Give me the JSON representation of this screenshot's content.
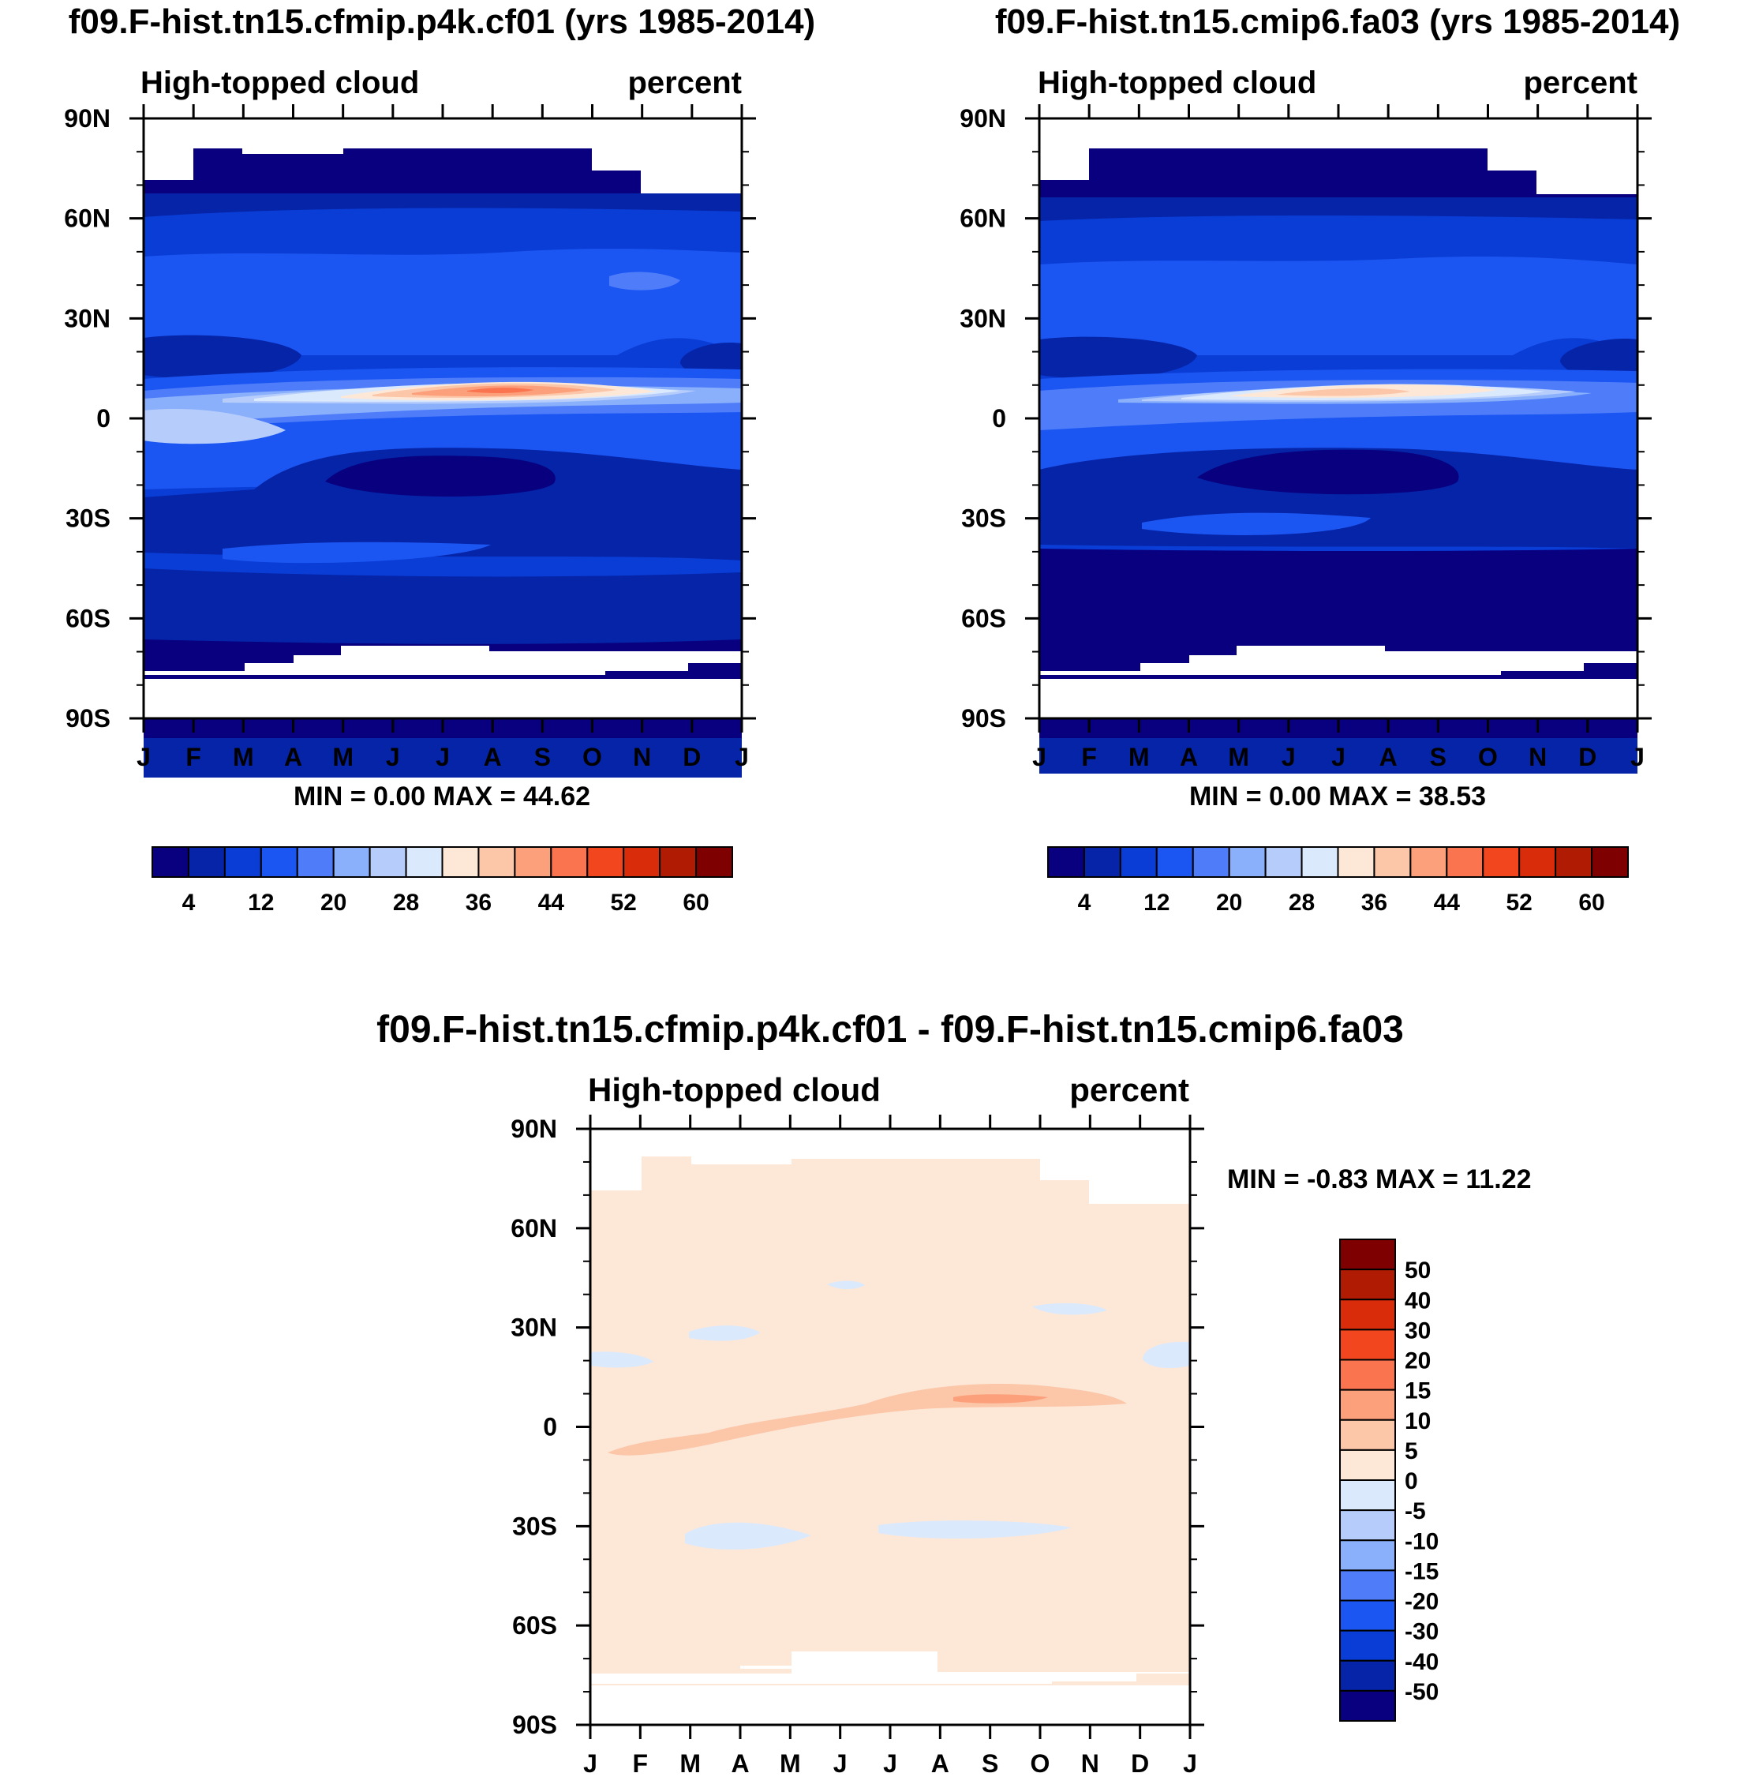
{
  "chart_data": [
    {
      "type": "heatmap",
      "title": "f09.F-hist.tn15.cfmip.p4k.cf01 (yrs 1985-2014)",
      "left_label": "High-topped cloud",
      "right_label": "percent",
      "x_tick_labels": [
        "J",
        "F",
        "M",
        "A",
        "M",
        "J",
        "J",
        "A",
        "S",
        "O",
        "N",
        "D",
        "J"
      ],
      "y_tick_labels": [
        "90N",
        "60N",
        "30N",
        "0",
        "30S",
        "60S",
        "90S"
      ],
      "y_range": [
        -90,
        90
      ],
      "min": 0.0,
      "max": 44.62,
      "stats_text": "MIN =   0.00 MAX =  44.62",
      "colorbar_labels": [
        "4",
        "12",
        "20",
        "28",
        "36",
        "44",
        "52",
        "60"
      ],
      "features": [
        {
          "name": "itcz-band",
          "month_center": 6.8,
          "lat": 8,
          "value": 44
        },
        {
          "name": "southern-subtropical-minimum",
          "month_center": 6.5,
          "lat": -19,
          "value": 2
        }
      ]
    },
    {
      "type": "heatmap",
      "title": "f09.F-hist.tn15.cmip6.fa03 (yrs 1985-2014)",
      "left_label": "High-topped cloud",
      "right_label": "percent",
      "x_tick_labels": [
        "J",
        "F",
        "M",
        "A",
        "M",
        "J",
        "J",
        "A",
        "S",
        "O",
        "N",
        "D",
        "J"
      ],
      "y_tick_labels": [
        "90N",
        "60N",
        "30N",
        "0",
        "30S",
        "60S",
        "90S"
      ],
      "y_range": [
        -90,
        90
      ],
      "min": 0.0,
      "max": 38.53,
      "stats_text": "MIN =   0.00 MAX =  38.53",
      "colorbar_labels": [
        "4",
        "12",
        "20",
        "28",
        "36",
        "44",
        "52",
        "60"
      ],
      "features": [
        {
          "name": "itcz-band",
          "month_center": 6.8,
          "lat": 8,
          "value": 38
        },
        {
          "name": "southern-subtropical-minimum",
          "month_center": 6.5,
          "lat": -19,
          "value": 2
        }
      ]
    },
    {
      "type": "heatmap",
      "title": "f09.F-hist.tn15.cfmip.p4k.cf01 - f09.F-hist.tn15.cmip6.fa03",
      "left_label": "High-topped cloud",
      "right_label": "percent",
      "x_tick_labels": [
        "J",
        "F",
        "M",
        "A",
        "M",
        "J",
        "J",
        "A",
        "S",
        "O",
        "N",
        "D",
        "J"
      ],
      "y_tick_labels": [
        "90N",
        "60N",
        "30N",
        "0",
        "30S",
        "60S",
        "90S"
      ],
      "y_range": [
        -90,
        90
      ],
      "min": -0.83,
      "max": 11.22,
      "stats_text": "MIN =  -0.83 MAX =  11.22",
      "colorbar_labels": [
        "50",
        "40",
        "30",
        "20",
        "15",
        "10",
        "5",
        "0",
        "-5",
        "-10",
        "-15",
        "-20",
        "-30",
        "-40",
        "-50"
      ],
      "features": [
        {
          "name": "positive-band",
          "month_center": 7.5,
          "lat": 5,
          "value": 8
        },
        {
          "name": "peak",
          "month_center": 8.2,
          "lat": 8,
          "value": 11.22
        }
      ]
    }
  ],
  "colors": {
    "seq": [
      "#08007f",
      "#0524a8",
      "#0a3dd6",
      "#1c56f2",
      "#4f7dfa",
      "#8ab0fb",
      "#b6cdfc",
      "#dbe9fd",
      "#fde8d8",
      "#fcc6a8",
      "#fca07c",
      "#fb7450",
      "#f2471e",
      "#d92c0a",
      "#b01b04",
      "#7f0000"
    ],
    "div": [
      "#7f0000",
      "#b01b04",
      "#d92c0a",
      "#f2471e",
      "#fb7450",
      "#fca07c",
      "#fcc6a8",
      "#fde8d8",
      "#dbe9fd",
      "#b6cdfc",
      "#8ab0fb",
      "#4f7dfa",
      "#1c56f2",
      "#0a3dd6",
      "#0524a8",
      "#08007f"
    ]
  }
}
